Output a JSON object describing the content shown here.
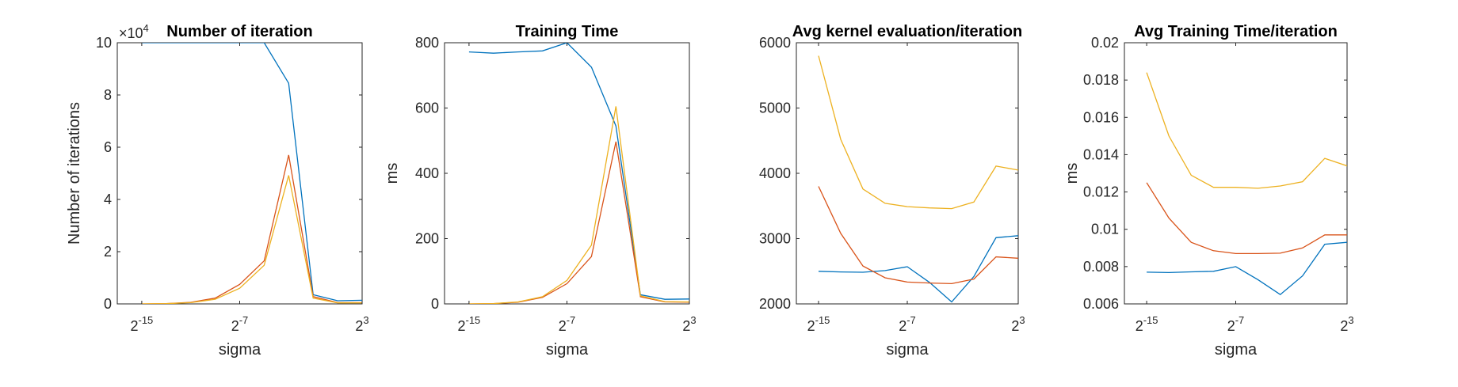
{
  "chart_data": [
    {
      "type": "line",
      "title": "Number of iteration",
      "xlabel": "sigma",
      "ylabel": "Number of iterations",
      "y_multiplier": "×10",
      "y_multiplier_exp": "4",
      "x_scale": "log2",
      "xlim": [
        -17,
        3
      ],
      "ylim": [
        0,
        10
      ],
      "x_ticks": [
        {
          "value": -15,
          "base": "2",
          "exp": "-15"
        },
        {
          "value": -7,
          "base": "2",
          "exp": "-7"
        },
        {
          "value": 3,
          "base": "2",
          "exp": "3"
        }
      ],
      "y_ticks": [
        "0",
        "2",
        "4",
        "6",
        "8",
        "10"
      ],
      "x": [
        -15,
        -13,
        -11,
        -9,
        -7,
        -5,
        -3,
        -1,
        1,
        3
      ],
      "series": [
        {
          "color": "#0072BD",
          "values": [
            10,
            10,
            10,
            10,
            10,
            10,
            8.45,
            0.35,
            0.12,
            0.14
          ]
        },
        {
          "color": "#D95319",
          "values": [
            0,
            0.01,
            0.06,
            0.22,
            0.75,
            1.65,
            5.7,
            0.28,
            0.05,
            0.05
          ]
        },
        {
          "color": "#EDB120",
          "values": [
            0,
            0.01,
            0.05,
            0.18,
            0.6,
            1.48,
            4.92,
            0.22,
            0.04,
            0.04
          ]
        }
      ]
    },
    {
      "type": "line",
      "title": "Training Time",
      "xlabel": "sigma",
      "ylabel": "ms",
      "x_scale": "log2",
      "xlim": [
        -17,
        3
      ],
      "ylim": [
        0,
        800
      ],
      "x_ticks": [
        {
          "value": -15,
          "base": "2",
          "exp": "-15"
        },
        {
          "value": -7,
          "base": "2",
          "exp": "-7"
        },
        {
          "value": 3,
          "base": "2",
          "exp": "3"
        }
      ],
      "y_ticks": [
        "0",
        "200",
        "400",
        "600",
        "800"
      ],
      "x": [
        -15,
        -13,
        -11,
        -9,
        -7,
        -5,
        -3,
        -1,
        1,
        3
      ],
      "series": [
        {
          "color": "#0072BD",
          "values": [
            772,
            768,
            772,
            775,
            800,
            725,
            545,
            28,
            14,
            15
          ]
        },
        {
          "color": "#D95319",
          "values": [
            0,
            1,
            5,
            20,
            62,
            145,
            497,
            22,
            6,
            5
          ]
        },
        {
          "color": "#EDB120",
          "values": [
            0,
            1,
            6,
            22,
            72,
            180,
            605,
            25,
            7,
            6
          ]
        }
      ]
    },
    {
      "type": "line",
      "title": "Avg kernel evaluation/iteration",
      "xlabel": "sigma",
      "ylabel": "",
      "x_scale": "log2",
      "xlim": [
        -17,
        3
      ],
      "ylim": [
        2000,
        6000
      ],
      "x_ticks": [
        {
          "value": -15,
          "base": "2",
          "exp": "-15"
        },
        {
          "value": -7,
          "base": "2",
          "exp": "-7"
        },
        {
          "value": 3,
          "base": "2",
          "exp": "3"
        }
      ],
      "y_ticks": [
        "2000",
        "3000",
        "4000",
        "5000",
        "6000"
      ],
      "x": [
        -15,
        -13,
        -11,
        -9,
        -7,
        -5,
        -3,
        -1,
        1,
        3
      ],
      "series": [
        {
          "color": "#0072BD",
          "values": [
            2500,
            2490,
            2485,
            2510,
            2570,
            2330,
            2030,
            2420,
            3015,
            3045
          ]
        },
        {
          "color": "#D95319",
          "values": [
            3800,
            3080,
            2580,
            2400,
            2335,
            2320,
            2310,
            2380,
            2720,
            2700
          ]
        },
        {
          "color": "#EDB120",
          "values": [
            5800,
            4520,
            3760,
            3540,
            3490,
            3470,
            3460,
            3560,
            4110,
            4050
          ]
        }
      ]
    },
    {
      "type": "line",
      "title": "Avg Training Time/iteration",
      "xlabel": "sigma",
      "ylabel": "ms",
      "x_scale": "log2",
      "xlim": [
        -17,
        3
      ],
      "ylim": [
        0.006,
        0.02
      ],
      "x_ticks": [
        {
          "value": -15,
          "base": "2",
          "exp": "-15"
        },
        {
          "value": -7,
          "base": "2",
          "exp": "-7"
        },
        {
          "value": 3,
          "base": "2",
          "exp": "3"
        }
      ],
      "y_ticks": [
        "0.006",
        "0.008",
        "0.01",
        "0.012",
        "0.014",
        "0.016",
        "0.018",
        "0.02"
      ],
      "x": [
        -15,
        -13,
        -11,
        -9,
        -7,
        -5,
        -3,
        -1,
        1,
        3
      ],
      "series": [
        {
          "color": "#0072BD",
          "values": [
            0.0077,
            0.00768,
            0.00772,
            0.00775,
            0.008,
            0.0073,
            0.0065,
            0.0075,
            0.0092,
            0.0093
          ]
        },
        {
          "color": "#D95319",
          "values": [
            0.0125,
            0.0106,
            0.0093,
            0.00885,
            0.0087,
            0.0087,
            0.00872,
            0.009,
            0.0097,
            0.0097
          ]
        },
        {
          "color": "#EDB120",
          "values": [
            0.0184,
            0.015,
            0.0129,
            0.01225,
            0.01225,
            0.0122,
            0.01232,
            0.01255,
            0.0138,
            0.0134
          ]
        }
      ]
    }
  ]
}
